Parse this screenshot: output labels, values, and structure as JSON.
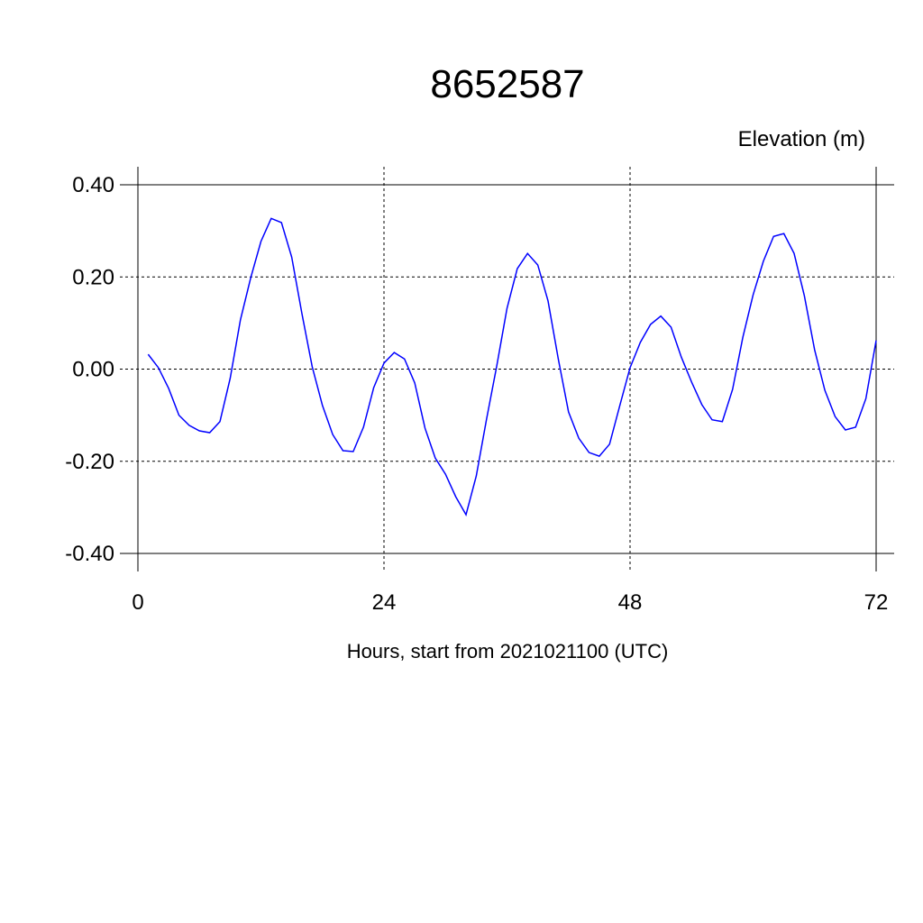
{
  "chart_data": {
    "type": "line",
    "title": "8652587",
    "ylabel": "Elevation (m)",
    "xlabel": "Hours, start from 2021021100 (UTC)",
    "x": [
      1,
      2,
      3,
      4,
      5,
      6,
      7,
      8,
      9,
      10,
      11,
      12,
      13,
      14,
      15,
      16,
      17,
      18,
      19,
      20,
      21,
      22,
      23,
      24,
      25,
      26,
      27,
      28,
      29,
      30,
      31,
      32,
      33,
      34,
      35,
      36,
      37,
      38,
      39,
      40,
      41,
      42,
      43,
      44,
      45,
      46,
      47,
      48,
      49,
      50,
      51,
      52,
      53,
      54,
      55,
      56,
      57,
      58,
      59,
      60,
      61,
      62,
      63,
      64,
      65,
      66,
      67,
      68,
      69,
      70,
      71,
      72
    ],
    "series": [
      {
        "color": "#0000ff",
        "values": [
          0.032,
          0.003,
          -0.042,
          -0.1,
          -0.122,
          -0.134,
          -0.138,
          -0.114,
          -0.02,
          0.107,
          0.198,
          0.277,
          0.327,
          0.318,
          0.243,
          0.12,
          0.005,
          -0.079,
          -0.142,
          -0.177,
          -0.179,
          -0.126,
          -0.04,
          0.013,
          0.036,
          0.022,
          -0.03,
          -0.128,
          -0.193,
          -0.228,
          -0.277,
          -0.316,
          -0.232,
          -0.109,
          0.007,
          0.132,
          0.218,
          0.251,
          0.226,
          0.148,
          0.022,
          -0.093,
          -0.15,
          -0.181,
          -0.189,
          -0.163,
          -0.079,
          0.003,
          0.058,
          0.097,
          0.115,
          0.091,
          0.026,
          -0.028,
          -0.077,
          -0.11,
          -0.114,
          -0.044,
          0.069,
          0.161,
          0.234,
          0.288,
          0.294,
          0.251,
          0.159,
          0.042,
          -0.046,
          -0.103,
          -0.132,
          -0.126,
          -0.064,
          0.062
        ]
      }
    ],
    "xlim": [
      0,
      72
    ],
    "xticks": [
      0,
      24,
      48,
      72
    ],
    "ylim": [
      -0.4,
      0.4
    ],
    "yticks": [
      {
        "value": -0.4,
        "label": "-0.40"
      },
      {
        "value": -0.2,
        "label": "-0.20"
      },
      {
        "value": 0,
        "label": "0.00"
      },
      {
        "value": 0.2,
        "label": "0.20"
      },
      {
        "value": 0.4,
        "label": "0.40"
      }
    ],
    "grid": true
  }
}
